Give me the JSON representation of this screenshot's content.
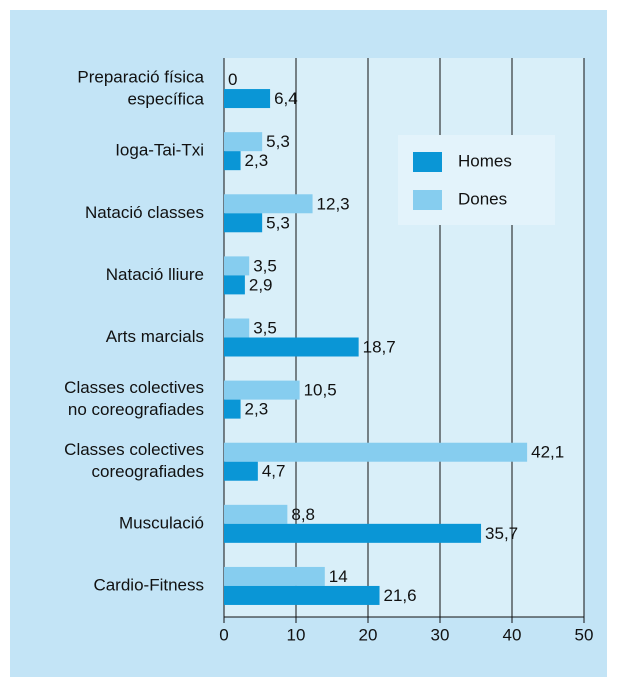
{
  "chart_data": {
    "type": "barh",
    "categories": [
      [
        "Preparació física",
        "específica"
      ],
      [
        "Ioga-Tai-Txi"
      ],
      [
        "Natació classes"
      ],
      [
        "Natació lliure"
      ],
      [
        "Arts marcials"
      ],
      [
        "Classes colectives",
        "no coreografiades"
      ],
      [
        "Classes colectives",
        "coreografiades"
      ],
      [
        "Musculació"
      ],
      [
        "Cardio-Fitness"
      ]
    ],
    "series": [
      {
        "name": "Homes",
        "color": "#0a96d6",
        "values": [
          6.4,
          2.3,
          5.3,
          2.9,
          18.7,
          2.3,
          4.7,
          35.7,
          21.6
        ],
        "value_labels": [
          "6,4",
          "2,3",
          "5,3",
          "2,9",
          "18,7",
          "2,3",
          "4,7",
          "35,7",
          "21,6"
        ]
      },
      {
        "name": "Dones",
        "color": "#86cdef",
        "values": [
          0,
          5.3,
          12.3,
          3.5,
          3.5,
          10.5,
          42.1,
          8.8,
          14
        ],
        "value_labels": [
          "0",
          "5,3",
          "12,3",
          "3,5",
          "3,5",
          "10,5",
          "42,1",
          "8,8",
          "14"
        ]
      }
    ],
    "xlim": [
      0,
      50
    ],
    "xticks": [
      0,
      10,
      20,
      30,
      40,
      50
    ],
    "grid": true,
    "legend": "upper right"
  }
}
